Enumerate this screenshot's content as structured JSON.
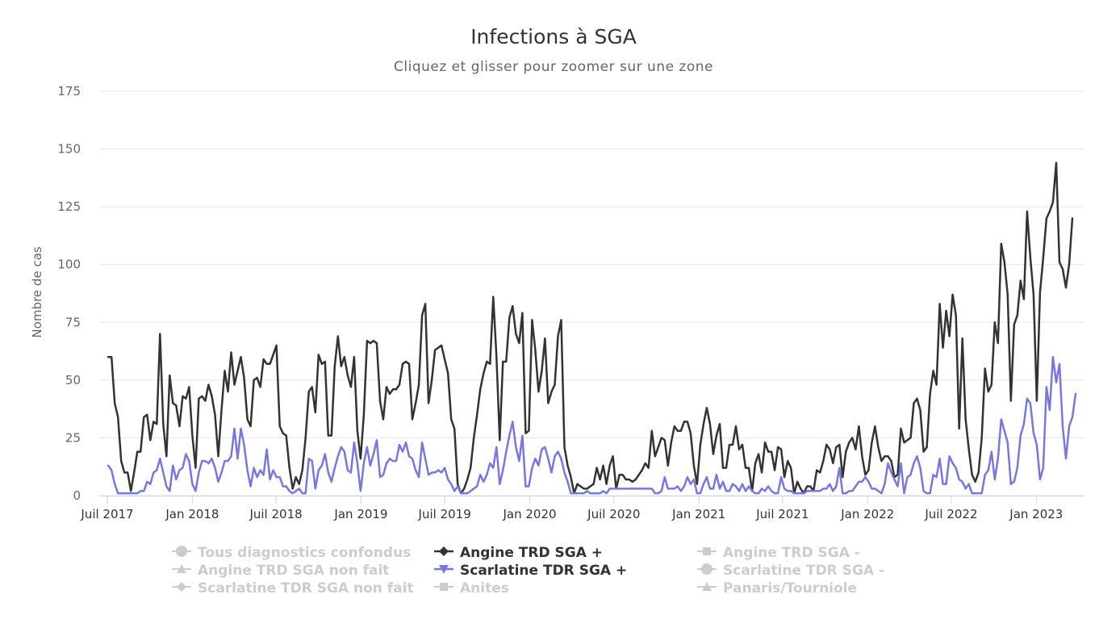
{
  "chart_data": {
    "type": "line",
    "title": "Infections à SGA",
    "subtitle": "Cliquez et glisser pour zoomer sur une zone",
    "ylabel": "Nombre de cas",
    "xlabel": "",
    "ylim": [
      0,
      175
    ],
    "yticks": [
      0,
      25,
      50,
      75,
      100,
      125,
      150,
      175
    ],
    "x_start": "2017-07-03",
    "x_interval_days": 7,
    "xticks": [
      {
        "label": "Juil 2017",
        "date": "2017-07-01"
      },
      {
        "label": "Jan 2018",
        "date": "2018-01-01"
      },
      {
        "label": "Juil 2018",
        "date": "2018-07-01"
      },
      {
        "label": "Jan 2019",
        "date": "2019-01-01"
      },
      {
        "label": "Juil 2019",
        "date": "2019-07-01"
      },
      {
        "label": "Jan 2020",
        "date": "2020-01-01"
      },
      {
        "label": "Juil 2020",
        "date": "2020-07-01"
      },
      {
        "label": "Jan 2021",
        "date": "2021-01-01"
      },
      {
        "label": "Juil 2021",
        "date": "2021-07-01"
      },
      {
        "label": "Jan 2022",
        "date": "2022-01-01"
      },
      {
        "label": "Juil 2022",
        "date": "2022-07-01"
      },
      {
        "label": "Jan 2023",
        "date": "2023-01-01"
      }
    ],
    "grid": true,
    "legend_placement": "bottom",
    "series": [
      {
        "name": "Angine TRD SGA +",
        "color": "#333333",
        "marker": "diamond",
        "visible": true,
        "values": [
          60,
          60,
          40,
          34,
          15,
          10,
          10,
          2,
          10,
          19,
          19,
          34,
          35,
          24,
          32,
          31,
          70,
          31,
          17,
          52,
          40,
          39,
          30,
          43,
          42,
          47,
          26,
          12,
          42,
          43,
          41,
          48,
          43,
          35,
          17,
          37,
          54,
          45,
          62,
          48,
          54,
          60,
          51,
          33,
          30,
          50,
          51,
          47,
          59,
          57,
          57,
          61,
          65,
          30,
          27,
          26,
          12,
          3,
          8,
          5,
          11,
          25,
          45,
          47,
          36,
          61,
          57,
          58,
          26,
          26,
          56,
          69,
          56,
          60,
          52,
          47,
          60,
          28,
          16,
          35,
          67,
          66,
          67,
          66,
          41,
          33,
          47,
          44,
          46,
          46,
          48,
          57,
          58,
          57,
          33,
          40,
          48,
          78,
          83,
          40,
          50,
          63,
          64,
          65,
          59,
          53,
          33,
          29,
          5,
          1,
          3,
          7,
          12,
          25,
          35,
          46,
          53,
          58,
          57,
          86,
          60,
          24,
          58,
          58,
          77,
          82,
          70,
          66,
          79,
          27,
          28,
          76,
          63,
          45,
          54,
          68,
          40,
          45,
          48,
          69,
          76,
          21,
          13,
          8,
          1,
          5,
          4,
          3,
          3,
          4,
          5,
          12,
          7,
          13,
          5,
          13,
          17,
          3,
          9,
          9,
          7,
          7,
          6,
          7,
          9,
          11,
          14,
          12,
          28,
          17,
          21,
          25,
          24,
          13,
          23,
          30,
          28,
          28,
          32,
          32,
          27,
          13,
          5,
          22,
          31,
          38,
          31,
          18,
          26,
          31,
          12,
          12,
          22,
          22,
          30,
          20,
          22,
          12,
          12,
          2,
          14,
          18,
          10,
          23,
          19,
          19,
          11,
          21,
          20,
          8,
          15,
          12,
          1,
          6,
          3,
          1,
          4,
          4,
          2,
          11,
          10,
          15,
          22,
          20,
          14,
          21,
          22,
          8,
          19,
          23,
          25,
          20,
          30,
          17,
          9,
          11,
          23,
          30,
          21,
          15,
          17,
          17,
          15,
          8,
          9,
          29,
          23,
          24,
          25,
          40,
          42,
          37,
          19,
          21,
          44,
          54,
          48,
          83,
          64,
          80,
          69,
          87,
          78,
          29,
          68,
          33,
          20,
          9,
          6,
          10,
          25,
          55,
          45,
          48,
          75,
          66,
          109,
          101,
          87,
          41,
          74,
          78,
          93,
          85,
          123,
          103,
          87,
          41,
          88,
          103,
          120,
          123,
          127,
          144,
          101,
          98,
          90,
          100,
          120
        ]
      },
      {
        "name": "Scarlatine TDR SGA +",
        "color": "#7677e0",
        "marker": "triangle-down",
        "visible": true,
        "values": [
          13,
          11,
          5,
          1,
          1,
          1,
          1,
          1,
          1,
          1,
          2,
          2,
          6,
          5,
          10,
          11,
          16,
          10,
          4,
          2,
          13,
          7,
          11,
          12,
          18,
          15,
          5,
          2,
          10,
          15,
          15,
          14,
          16,
          12,
          6,
          10,
          15,
          15,
          17,
          29,
          16,
          29,
          22,
          11,
          4,
          12,
          8,
          11,
          9,
          20,
          7,
          11,
          8,
          8,
          4,
          4,
          2,
          1,
          2,
          3,
          1,
          1,
          16,
          15,
          3,
          11,
          13,
          18,
          10,
          6,
          12,
          17,
          21,
          19,
          11,
          10,
          23,
          14,
          2,
          14,
          21,
          13,
          18,
          24,
          8,
          9,
          14,
          16,
          15,
          15,
          22,
          19,
          23,
          17,
          16,
          11,
          8,
          23,
          16,
          9,
          10,
          10,
          11,
          10,
          12,
          7,
          5,
          2,
          4,
          1,
          1,
          1,
          2,
          3,
          4,
          9,
          6,
          9,
          14,
          12,
          21,
          5,
          11,
          19,
          26,
          32,
          21,
          15,
          26,
          4,
          4,
          12,
          16,
          13,
          20,
          21,
          16,
          10,
          17,
          19,
          16,
          10,
          6,
          1,
          1,
          1,
          1,
          1,
          2,
          1,
          1,
          1,
          1,
          2,
          1,
          3,
          3,
          3,
          3,
          3,
          3,
          3,
          3,
          3,
          3,
          3,
          3,
          3,
          3,
          1,
          1,
          2,
          8,
          3,
          3,
          3,
          4,
          2,
          4,
          8,
          5,
          7,
          1,
          1,
          5,
          8,
          3,
          3,
          9,
          3,
          6,
          2,
          2,
          5,
          4,
          2,
          5,
          2,
          4,
          2,
          1,
          1,
          3,
          2,
          4,
          2,
          1,
          1,
          8,
          3,
          2,
          2,
          1,
          1,
          1,
          1,
          2,
          2,
          2,
          2,
          2,
          3,
          3,
          5,
          2,
          4,
          12,
          1,
          1,
          2,
          2,
          4,
          6,
          6,
          8,
          6,
          3,
          3,
          2,
          1,
          5,
          14,
          10,
          7,
          4,
          14,
          1,
          8,
          9,
          14,
          17,
          12,
          2,
          1,
          1,
          9,
          8,
          16,
          5,
          5,
          17,
          14,
          12,
          7,
          6,
          3,
          5,
          1,
          1,
          1,
          1,
          9,
          11,
          19,
          7,
          16,
          33,
          28,
          23,
          5,
          6,
          12,
          26,
          31,
          42,
          40,
          27,
          22,
          7,
          12,
          47,
          37,
          60,
          49,
          57,
          30,
          16,
          30,
          34,
          44
        ]
      }
    ],
    "legend": [
      {
        "name": "Tous diagnostics confondus",
        "symbol": "circle",
        "visible": false
      },
      {
        "name": "Angine TRD SGA +",
        "symbol": "diamond",
        "visible": true,
        "color": "#333333"
      },
      {
        "name": "Angine TRD SGA -",
        "symbol": "square",
        "visible": false
      },
      {
        "name": "Angine TRD SGA non fait",
        "symbol": "triangle",
        "visible": false
      },
      {
        "name": "Scarlatine TDR SGA +",
        "symbol": "triangle-down",
        "visible": true,
        "color": "#7677e0"
      },
      {
        "name": "Scarlatine TDR SGA -",
        "symbol": "circle",
        "visible": false
      },
      {
        "name": "Scarlatine TDR SGA non fait",
        "symbol": "diamond",
        "visible": false
      },
      {
        "name": "Anites",
        "symbol": "square",
        "visible": false
      },
      {
        "name": "Panaris/Tourniole",
        "symbol": "triangle",
        "visible": false
      }
    ],
    "hidden_color": "#cccccc"
  }
}
